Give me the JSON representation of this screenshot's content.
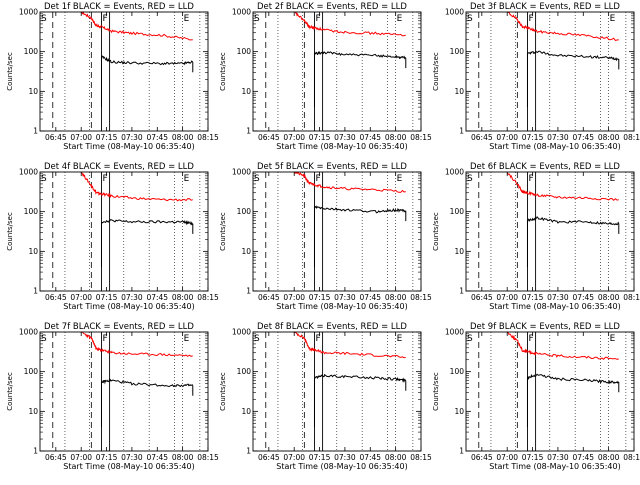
{
  "chart_data": {
    "type": "line",
    "scale": "log",
    "ylim": [
      1,
      1000
    ],
    "ytick_labels": [
      "1000",
      "100",
      "10",
      "1"
    ],
    "xtick_labels": [
      "06:45",
      "07:00",
      "07:15",
      "07:30",
      "07:45",
      "08:00",
      "08:15"
    ],
    "xlabel": "Start Time (08-May-10 06:35:40)",
    "ylabel": "Counts/sec",
    "marker_labels": [
      "S",
      "F",
      "E"
    ],
    "legend_text": "BLACK = Events, RED = LLD",
    "detectors": [
      {
        "title": "Det 1f  BLACK = Events, RED = LLD",
        "red": [
          [
            7.0,
            1000
          ],
          [
            7.1,
            700
          ],
          [
            7.15,
            450
          ],
          [
            7.2,
            420
          ],
          [
            7.3,
            330
          ],
          [
            7.5,
            290
          ],
          [
            7.8,
            260
          ],
          [
            8.1,
            200
          ]
        ],
        "black": [
          [
            7.2,
            75
          ],
          [
            7.3,
            55
          ],
          [
            7.5,
            52
          ],
          [
            7.8,
            50
          ],
          [
            8.0,
            50
          ],
          [
            8.1,
            55
          ]
        ]
      },
      {
        "title": "Det 2f  BLACK = Events, RED = LLD",
        "red": [
          [
            7.0,
            1000
          ],
          [
            7.1,
            600
          ],
          [
            7.15,
            420
          ],
          [
            7.2,
            400
          ],
          [
            7.3,
            350
          ],
          [
            7.5,
            310
          ],
          [
            7.8,
            290
          ],
          [
            8.1,
            260
          ]
        ],
        "black": [
          [
            7.2,
            90
          ],
          [
            7.3,
            95
          ],
          [
            7.5,
            85
          ],
          [
            7.8,
            80
          ],
          [
            8.0,
            75
          ],
          [
            8.1,
            70
          ]
        ]
      },
      {
        "title": "Det 3f  BLACK = Events, RED = LLD",
        "red": [
          [
            7.0,
            1000
          ],
          [
            7.1,
            650
          ],
          [
            7.15,
            420
          ],
          [
            7.2,
            400
          ],
          [
            7.3,
            320
          ],
          [
            7.5,
            290
          ],
          [
            7.8,
            250
          ],
          [
            8.1,
            200
          ]
        ],
        "black": [
          [
            7.2,
            90
          ],
          [
            7.3,
            100
          ],
          [
            7.5,
            80
          ],
          [
            7.8,
            75
          ],
          [
            8.0,
            70
          ],
          [
            8.1,
            65
          ]
        ]
      },
      {
        "title": "Det 4f  BLACK = Events, RED = LLD",
        "red": [
          [
            7.0,
            1000
          ],
          [
            7.1,
            450
          ],
          [
            7.15,
            300
          ],
          [
            7.2,
            280
          ],
          [
            7.3,
            250
          ],
          [
            7.5,
            220
          ],
          [
            7.8,
            200
          ],
          [
            8.1,
            200
          ]
        ],
        "black": [
          [
            7.2,
            55
          ],
          [
            7.3,
            60
          ],
          [
            7.5,
            55
          ],
          [
            7.8,
            55
          ],
          [
            8.0,
            55
          ],
          [
            8.1,
            50
          ]
        ]
      },
      {
        "title": "Det 5f  BLACK = Events, RED = LLD",
        "red": [
          [
            7.0,
            1000
          ],
          [
            7.1,
            800
          ],
          [
            7.15,
            520
          ],
          [
            7.2,
            480
          ],
          [
            7.3,
            420
          ],
          [
            7.5,
            380
          ],
          [
            7.8,
            360
          ],
          [
            8.1,
            320
          ]
        ],
        "black": [
          [
            7.2,
            130
          ],
          [
            7.3,
            120
          ],
          [
            7.5,
            110
          ],
          [
            7.8,
            100
          ],
          [
            8.0,
            110
          ],
          [
            8.1,
            105
          ]
        ]
      },
      {
        "title": "Det 6f  BLACK = Events, RED = LLD",
        "red": [
          [
            7.0,
            1000
          ],
          [
            7.1,
            500
          ],
          [
            7.15,
            320
          ],
          [
            7.2,
            300
          ],
          [
            7.3,
            260
          ],
          [
            7.5,
            230
          ],
          [
            7.8,
            220
          ],
          [
            8.1,
            200
          ]
        ],
        "black": [
          [
            7.2,
            60
          ],
          [
            7.3,
            70
          ],
          [
            7.5,
            55
          ],
          [
            7.8,
            55
          ],
          [
            8.0,
            50
          ],
          [
            8.1,
            50
          ]
        ]
      },
      {
        "title": "Det 7f  BLACK = Events, RED = LLD",
        "red": [
          [
            7.0,
            1000
          ],
          [
            7.1,
            700
          ],
          [
            7.15,
            380
          ],
          [
            7.2,
            350
          ],
          [
            7.3,
            300
          ],
          [
            7.5,
            280
          ],
          [
            7.8,
            270
          ],
          [
            8.1,
            250
          ]
        ],
        "black": [
          [
            7.2,
            55
          ],
          [
            7.3,
            60
          ],
          [
            7.5,
            50
          ],
          [
            7.8,
            45
          ],
          [
            8.0,
            45
          ],
          [
            8.1,
            45
          ]
        ]
      },
      {
        "title": "Det 8f  BLACK = Events, RED = LLD",
        "red": [
          [
            7.0,
            1000
          ],
          [
            7.1,
            700
          ],
          [
            7.15,
            380
          ],
          [
            7.2,
            350
          ],
          [
            7.3,
            300
          ],
          [
            7.5,
            290
          ],
          [
            7.8,
            260
          ],
          [
            8.1,
            230
          ]
        ],
        "black": [
          [
            7.2,
            70
          ],
          [
            7.3,
            80
          ],
          [
            7.5,
            75
          ],
          [
            7.8,
            70
          ],
          [
            8.0,
            65
          ],
          [
            8.1,
            60
          ]
        ]
      },
      {
        "title": "Det 9f  BLACK = Events, RED = LLD",
        "red": [
          [
            7.0,
            1000
          ],
          [
            7.1,
            600
          ],
          [
            7.15,
            340
          ],
          [
            7.2,
            320
          ],
          [
            7.3,
            280
          ],
          [
            7.5,
            250
          ],
          [
            7.8,
            230
          ],
          [
            8.1,
            210
          ]
        ],
        "black": [
          [
            7.2,
            70
          ],
          [
            7.3,
            85
          ],
          [
            7.5,
            65
          ],
          [
            7.8,
            60
          ],
          [
            8.0,
            55
          ],
          [
            8.1,
            55
          ]
        ]
      }
    ]
  }
}
